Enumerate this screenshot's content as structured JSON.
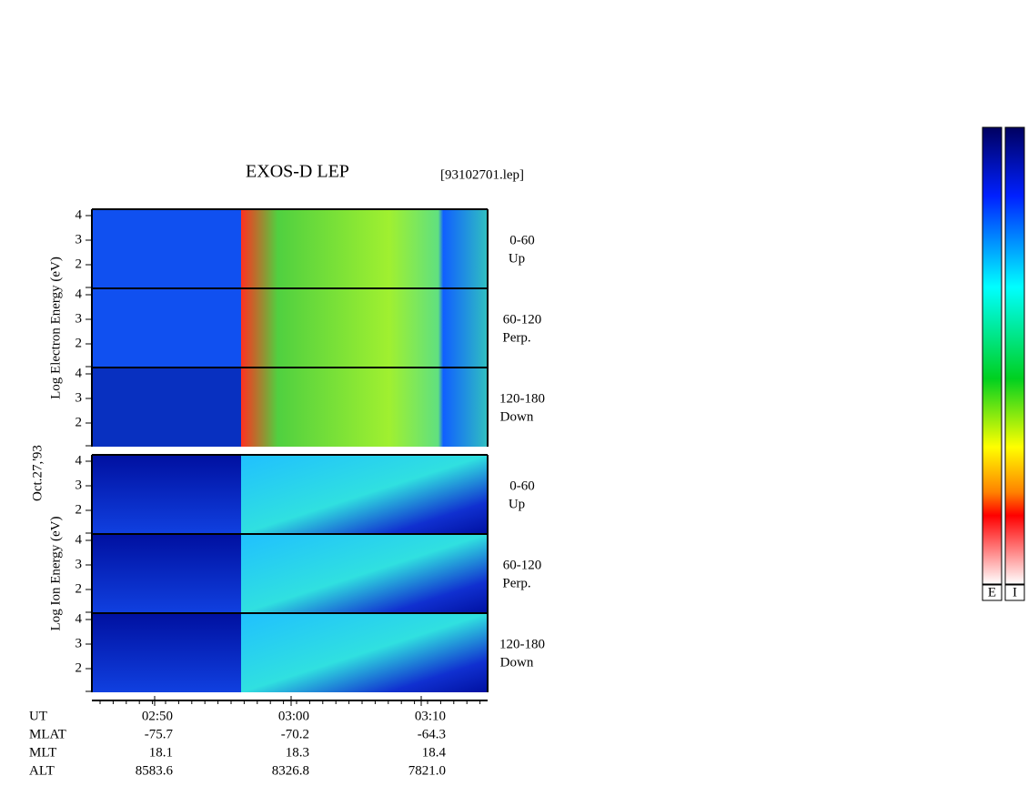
{
  "title": "EXOS-D LEP",
  "file": "[93102701.lep]",
  "date": "Oct.27,'93",
  "groups": [
    {
      "ylabel": "Log   Electron   Energy (eV)",
      "panels": [
        {
          "range": "0-60",
          "dir": "Up"
        },
        {
          "range": "60-120",
          "dir": "Perp."
        },
        {
          "range": "120-180",
          "dir": "Down"
        }
      ]
    },
    {
      "ylabel": "Log   Ion   Energy (eV)",
      "panels": [
        {
          "range": "0-60",
          "dir": "Up"
        },
        {
          "range": "60-120",
          "dir": "Perp."
        },
        {
          "range": "120-180",
          "dir": "Down"
        }
      ]
    }
  ],
  "yticks": [
    2,
    3,
    4
  ],
  "axis": {
    "rows": [
      {
        "name": "UT",
        "values": [
          "02:50",
          "03:00",
          "03:10"
        ]
      },
      {
        "name": "MLAT",
        "values": [
          "-75.7",
          "-70.2",
          "-64.3"
        ]
      },
      {
        "name": "MLT",
        "values": [
          "18.1",
          "18.3",
          "18.4"
        ]
      },
      {
        "name": "ALT",
        "values": [
          "8583.6",
          "8326.8",
          "7821.0"
        ]
      }
    ]
  },
  "colorbars": [
    "E",
    "I"
  ]
}
